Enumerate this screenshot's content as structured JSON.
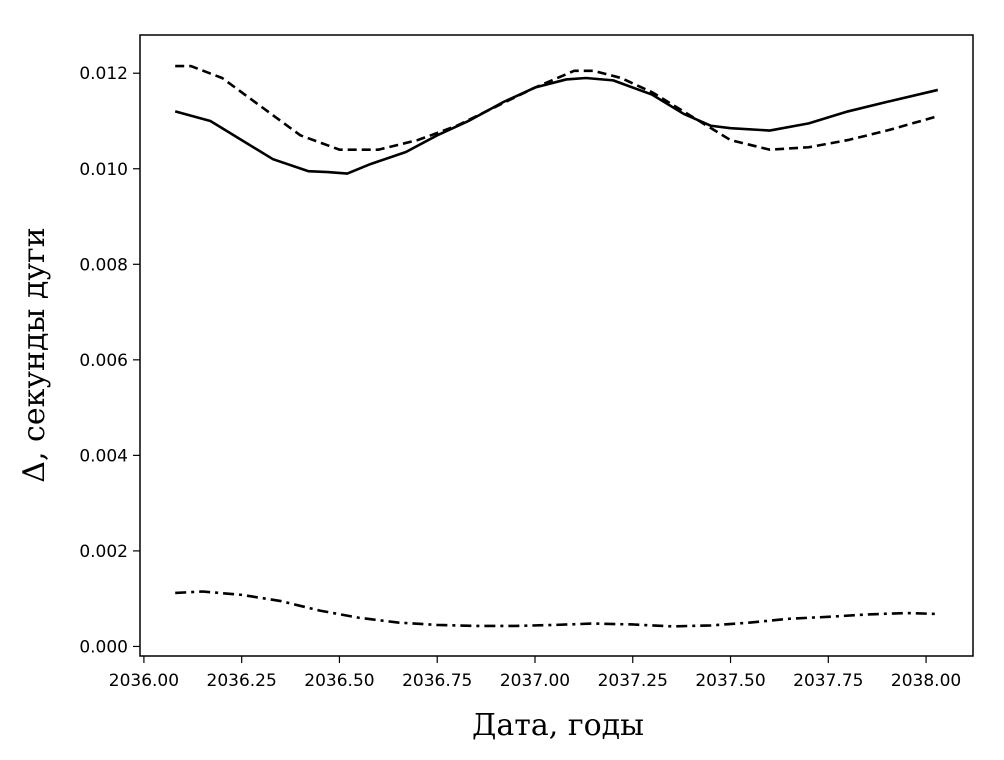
{
  "chart_data": {
    "type": "line",
    "title": "",
    "xlabel": "Дата, годы",
    "ylabel": "Δ, секунды дуги",
    "xlim": [
      2035.99,
      2038.12
    ],
    "ylim": [
      -0.0002,
      0.0128
    ],
    "xticks": [
      2036.0,
      2036.25,
      2036.5,
      2036.75,
      2037.0,
      2037.25,
      2037.5,
      2037.75,
      2038.0
    ],
    "xtick_labels": [
      "2036.00",
      "2036.25",
      "2036.50",
      "2036.75",
      "2037.00",
      "2037.25",
      "2037.50",
      "2037.75",
      "2038.00"
    ],
    "yticks": [
      0.0,
      0.002,
      0.004,
      0.006,
      0.008,
      0.01,
      0.012
    ],
    "ytick_labels": [
      "0.000",
      "0.002",
      "0.004",
      "0.006",
      "0.008",
      "0.010",
      "0.012"
    ],
    "grid": false,
    "legend": "none",
    "series": [
      {
        "style": "solid",
        "color": "#000000",
        "x": [
          2036.08,
          2036.17,
          2036.25,
          2036.33,
          2036.42,
          2036.47,
          2036.52,
          2036.58,
          2036.67,
          2036.75,
          2036.83,
          2036.92,
          2037.0,
          2037.08,
          2037.13,
          2037.2,
          2037.3,
          2037.38,
          2037.45,
          2037.5,
          2037.6,
          2037.7,
          2037.8,
          2037.9,
          2038.03
        ],
        "y": [
          0.0112,
          0.011,
          0.0106,
          0.0102,
          0.00995,
          0.00993,
          0.0099,
          0.0101,
          0.01035,
          0.0107,
          0.011,
          0.0114,
          0.0117,
          0.01187,
          0.0119,
          0.01185,
          0.01155,
          0.01115,
          0.0109,
          0.01085,
          0.0108,
          0.01095,
          0.0112,
          0.0114,
          0.01165
        ]
      },
      {
        "style": "dashed",
        "color": "#000000",
        "x": [
          2036.08,
          2036.12,
          2036.2,
          2036.3,
          2036.4,
          2036.5,
          2036.6,
          2036.7,
          2036.8,
          2036.9,
          2037.0,
          2037.1,
          2037.15,
          2037.22,
          2037.3,
          2037.4,
          2037.5,
          2037.6,
          2037.7,
          2037.8,
          2037.9,
          2038.03
        ],
        "y": [
          0.01215,
          0.01215,
          0.0119,
          0.0113,
          0.0107,
          0.0104,
          0.0104,
          0.0106,
          0.0109,
          0.0113,
          0.0117,
          0.01205,
          0.01205,
          0.0119,
          0.0116,
          0.0111,
          0.0106,
          0.0104,
          0.01045,
          0.0106,
          0.0108,
          0.0111
        ]
      },
      {
        "style": "dashdot",
        "color": "#000000",
        "x": [
          2036.08,
          2036.15,
          2036.25,
          2036.35,
          2036.45,
          2036.55,
          2036.65,
          2036.75,
          2036.85,
          2036.95,
          2037.05,
          2037.15,
          2037.25,
          2037.35,
          2037.45,
          2037.55,
          2037.65,
          2037.75,
          2037.85,
          2037.95,
          2038.03
        ],
        "y": [
          0.00112,
          0.00115,
          0.00108,
          0.00095,
          0.00075,
          0.0006,
          0.0005,
          0.00045,
          0.00043,
          0.00043,
          0.00045,
          0.00048,
          0.00046,
          0.00042,
          0.00044,
          0.0005,
          0.00058,
          0.00062,
          0.00067,
          0.0007,
          0.00068
        ]
      }
    ]
  }
}
